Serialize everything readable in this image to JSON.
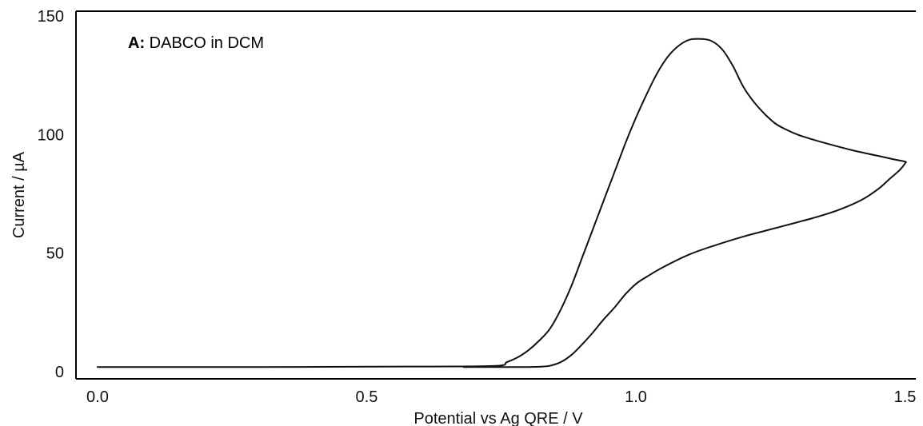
{
  "chart_data": {
    "type": "line",
    "title": "",
    "annotation_bold": "A:",
    "annotation_text": " DABCO in DCM",
    "xlabel": "Potential vs Ag QRE / V",
    "ylabel": "Current / µA",
    "xlim": [
      -0.04,
      1.52
    ],
    "ylim": [
      -3,
      152
    ],
    "xticks": [
      0.0,
      0.5,
      1.0,
      1.5
    ],
    "xtick_labels": [
      "0.0",
      "0.5",
      "1.0",
      "1.5"
    ],
    "yticks": [
      0,
      50,
      100,
      150
    ],
    "ytick_labels": [
      "0",
      "50",
      "100",
      "150"
    ],
    "grid": false,
    "line_color": "#111111",
    "series": [
      {
        "x": [
          0.0,
          0.3,
          0.6,
          0.74,
          0.76,
          0.78,
          0.8,
          0.82,
          0.84,
          0.86,
          0.88,
          0.9,
          0.92,
          0.94,
          0.96,
          0.98,
          1.0,
          1.02,
          1.04,
          1.06,
          1.08,
          1.1,
          1.12,
          1.14,
          1.16,
          1.18,
          1.2,
          1.22,
          1.24,
          1.26,
          1.28,
          1.3,
          1.32,
          1.35,
          1.4,
          1.45,
          1.48,
          1.5,
          1.5,
          1.49,
          1.47,
          1.45,
          1.42,
          1.38,
          1.34,
          1.3,
          1.25,
          1.2,
          1.15,
          1.1,
          1.05,
          1.02,
          1.0,
          0.98,
          0.96,
          0.94,
          0.92,
          0.9,
          0.88,
          0.86,
          0.84,
          0.82,
          0.8,
          0.78,
          0.76,
          0.72,
          0.7,
          0.68
        ],
        "y": [
          2.0,
          2.0,
          2.2,
          2.5,
          4,
          6,
          9,
          13,
          18,
          26,
          36,
          48,
          60,
          72,
          84,
          96,
          107,
          117,
          126,
          133,
          137.5,
          140,
          140.3,
          139.5,
          136,
          129,
          120,
          113.5,
          108.5,
          104.5,
          102,
          100,
          98.5,
          96.5,
          93.5,
          91,
          89.5,
          88.6,
          87.8,
          85,
          81,
          77,
          72.5,
          68.5,
          65.5,
          63,
          60,
          57,
          53.5,
          49.5,
          44,
          40,
          37,
          32.5,
          27,
          22,
          16.5,
          11.5,
          7,
          4,
          2.5,
          2.1,
          2.0,
          2.0,
          2.0,
          2.0,
          2.0,
          2.0
        ]
      }
    ]
  }
}
